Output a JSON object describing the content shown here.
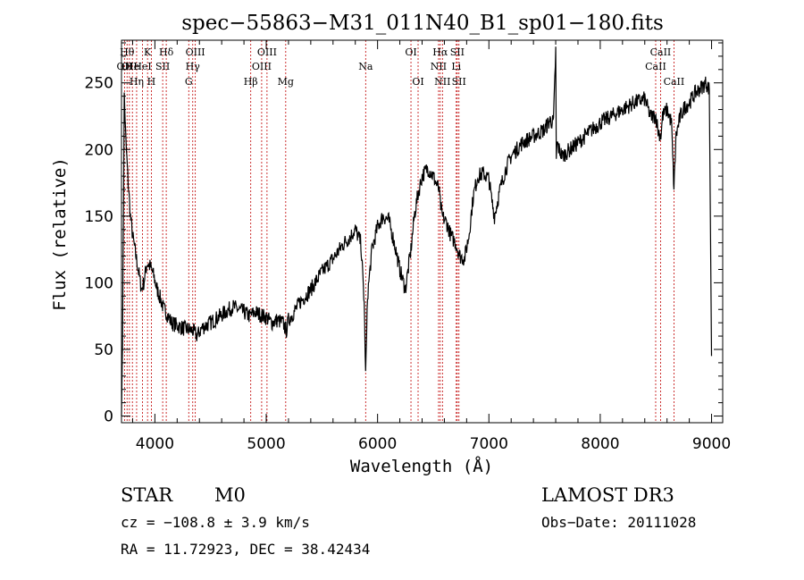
{
  "chart_data": {
    "type": "line",
    "title": "spec−55863−M31_011N40_B1_sp01−180.fits",
    "xlabel": "Wavelength (Å)",
    "ylabel": "Flux (relative)",
    "xlim": [
      3700,
      9100
    ],
    "ylim": [
      -5,
      282
    ],
    "xticks": [
      4000,
      5000,
      6000,
      7000,
      8000,
      9000
    ],
    "xtick_labels": [
      "4000",
      "5000",
      "6000",
      "7000",
      "8000",
      "9000"
    ],
    "yticks": [
      0,
      50,
      100,
      150,
      200,
      250
    ],
    "ytick_labels": [
      "0",
      "50",
      "100",
      "150",
      "200",
      "250"
    ],
    "series": [
      {
        "name": "flux",
        "color": "#000000",
        "x": [
          3700,
          3710,
          3725,
          3740,
          3760,
          3780,
          3800,
          3820,
          3850,
          3880,
          3900,
          3930,
          3960,
          3990,
          4020,
          4050,
          4080,
          4100,
          4150,
          4200,
          4250,
          4300,
          4340,
          4380,
          4420,
          4500,
          4600,
          4700,
          4800,
          4850,
          4900,
          5000,
          5050,
          5100,
          5150,
          5180,
          5200,
          5250,
          5300,
          5400,
          5500,
          5600,
          5700,
          5750,
          5800,
          5850,
          5880,
          5893,
          5910,
          5950,
          6000,
          6050,
          6100,
          6150,
          6200,
          6250,
          6300,
          6330,
          6360,
          6400,
          6450,
          6500,
          6550,
          6563,
          6580,
          6620,
          6660,
          6700,
          6740,
          6780,
          6820,
          6860,
          6900,
          6950,
          7000,
          7020,
          7050,
          7100,
          7150,
          7200,
          7300,
          7400,
          7500,
          7550,
          7580,
          7600,
          7605,
          7612,
          7630,
          7660,
          7700,
          7800,
          7900,
          8000,
          8100,
          8200,
          8300,
          8400,
          8450,
          8500,
          8520,
          8545,
          8560,
          8600,
          8640,
          8662,
          8680,
          8720,
          8760,
          8800,
          8850,
          8900,
          8950,
          8980,
          9000
        ],
        "y": [
          0,
          60,
          240,
          205,
          175,
          150,
          135,
          125,
          110,
          95,
          100,
          115,
          112,
          105,
          95,
          88,
          80,
          78,
          70,
          68,
          66,
          65,
          64,
          60,
          66,
          70,
          76,
          82,
          78,
          75,
          78,
          74,
          70,
          72,
          70,
          64,
          72,
          78,
          85,
          95,
          108,
          118,
          130,
          134,
          140,
          130,
          85,
          30,
          90,
          125,
          142,
          150,
          147,
          130,
          110,
          95,
          125,
          150,
          165,
          180,
          186,
          180,
          170,
          160,
          150,
          145,
          135,
          130,
          120,
          118,
          135,
          165,
          180,
          182,
          178,
          165,
          150,
          170,
          185,
          195,
          205,
          210,
          215,
          222,
          220,
          275,
          190,
          205,
          200,
          195,
          198,
          205,
          213,
          220,
          225,
          230,
          235,
          238,
          225,
          225,
          214,
          210,
          225,
          230,
          220,
          170,
          210,
          225,
          232,
          235,
          242,
          246,
          250,
          245,
          45
        ]
      }
    ],
    "line_color": "#c00000",
    "lines": [
      {
        "wave": 3727,
        "label": "OII",
        "row": 2
      },
      {
        "wave": 3750,
        "label": "Hθ",
        "row": 1
      },
      {
        "wave": 3771,
        "label": "OII",
        "row": 2
      },
      {
        "wave": 3798,
        "label": "He",
        "row": 2
      },
      {
        "wave": 3836,
        "label": "Hη",
        "row": 3
      },
      {
        "wave": 3889,
        "label": "HeI",
        "row": 2
      },
      {
        "wave": 3934,
        "label": "K",
        "row": 1
      },
      {
        "wave": 3968,
        "label": "H",
        "row": 3
      },
      {
        "wave": 4070,
        "label": "SII",
        "row": 2
      },
      {
        "wave": 4102,
        "label": "Hδ",
        "row": 1
      },
      {
        "wave": 4304,
        "label": "G",
        "row": 3
      },
      {
        "wave": 4340,
        "label": "Hγ",
        "row": 2
      },
      {
        "wave": 4363,
        "label": "OIII",
        "row": 1
      },
      {
        "wave": 4861,
        "label": "Hβ",
        "row": 3
      },
      {
        "wave": 4959,
        "label": "OIII",
        "row": 2
      },
      {
        "wave": 5007,
        "label": "OIII",
        "row": 1
      },
      {
        "wave": 5175,
        "label": "Mg",
        "row": 3
      },
      {
        "wave": 5893,
        "label": "Na",
        "row": 2
      },
      {
        "wave": 6300,
        "label": "OI",
        "row": 1
      },
      {
        "wave": 6364,
        "label": "OI",
        "row": 3
      },
      {
        "wave": 6548,
        "label": "NII",
        "row": 2
      },
      {
        "wave": 6563,
        "label": "Hα",
        "row": 1
      },
      {
        "wave": 6583,
        "label": "NII",
        "row": 3
      },
      {
        "wave": 6707,
        "label": "Li",
        "row": 2
      },
      {
        "wave": 6716,
        "label": "SII",
        "row": 1
      },
      {
        "wave": 6731,
        "label": "SII",
        "row": 3
      },
      {
        "wave": 8498,
        "label": "CaII",
        "row": 2
      },
      {
        "wave": 8542,
        "label": "CaII",
        "row": 1
      },
      {
        "wave": 8662,
        "label": "CaII",
        "row": 3
      }
    ]
  },
  "info": {
    "object_type": "STAR",
    "subclass": "M0",
    "survey": "LAMOST DR3",
    "redshift": "cz = −108.8 ± 3.9 km/s",
    "obs_date": "Obs−Date: 20111028",
    "coords": "RA =  11.72923, DEC =  38.42434"
  }
}
